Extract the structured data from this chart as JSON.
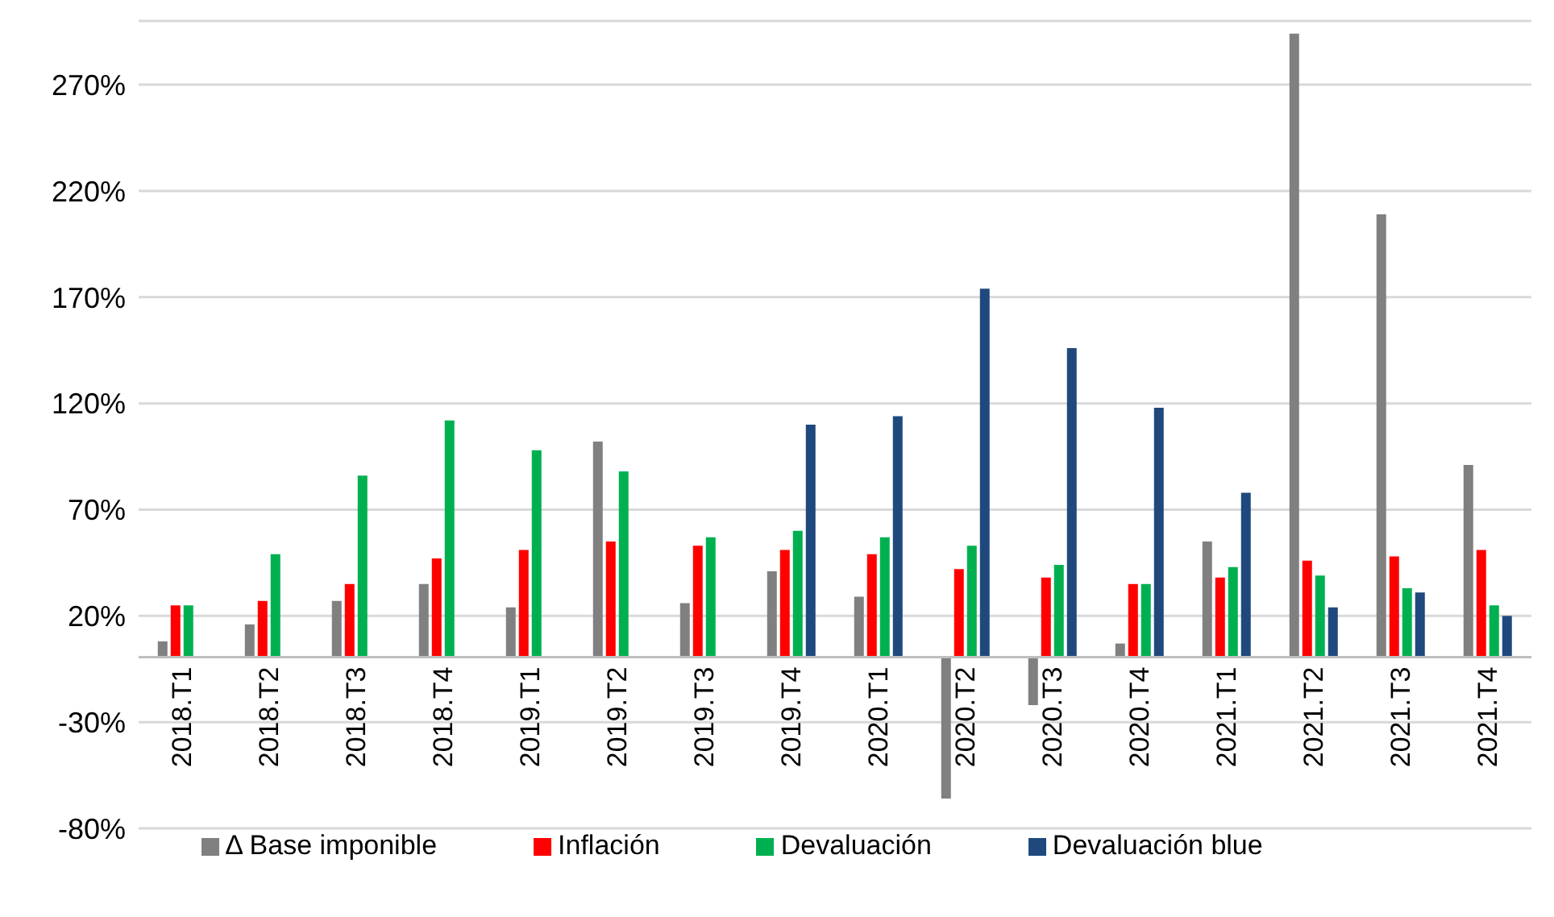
{
  "chart_data": {
    "type": "bar",
    "categories": [
      "2018.T1",
      "2018.T2",
      "2018.T3",
      "2018.T4",
      "2019.T1",
      "2019.T2",
      "2019.T3",
      "2019.T4",
      "2020.T1",
      "2020.T2",
      "2020.T3",
      "2020.T4",
      "2021.T1",
      "2021.T2",
      "2021.T3",
      "2021.T4"
    ],
    "series": [
      {
        "name": "Δ Base imponible",
        "color": "#808080",
        "values": [
          8,
          16,
          27,
          35,
          24,
          102,
          26,
          41,
          29,
          -66,
          -22,
          7,
          55,
          294,
          209,
          91
        ]
      },
      {
        "name": "Inflación",
        "color": "#ff0000",
        "values": [
          25,
          27,
          35,
          47,
          51,
          55,
          53,
          51,
          49,
          42,
          38,
          35,
          38,
          46,
          48,
          51
        ]
      },
      {
        "name": "Devaluación",
        "color": "#00b050",
        "values": [
          25,
          49,
          86,
          112,
          98,
          88,
          57,
          60,
          57,
          53,
          44,
          35,
          43,
          39,
          33,
          25
        ]
      },
      {
        "name": "Devaluación blue",
        "color": "#1f497d",
        "values": [
          null,
          null,
          null,
          null,
          null,
          null,
          null,
          110,
          114,
          174,
          146,
          118,
          78,
          24,
          31,
          20
        ]
      }
    ],
    "ylim": [
      -80,
      300
    ],
    "yticks": [
      {
        "value": -80,
        "label": "-80%"
      },
      {
        "value": -30,
        "label": "-30%"
      },
      {
        "value": 20,
        "label": "20%"
      },
      {
        "value": 70,
        "label": "70%"
      },
      {
        "value": 120,
        "label": "120%"
      },
      {
        "value": 170,
        "label": "170%"
      },
      {
        "value": 220,
        "label": "220%"
      },
      {
        "value": 270,
        "label": "270%"
      }
    ],
    "grid": "y",
    "legend": "bottom"
  }
}
